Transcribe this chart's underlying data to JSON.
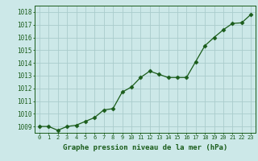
{
  "x": [
    0,
    1,
    2,
    3,
    4,
    5,
    6,
    7,
    8,
    9,
    10,
    11,
    12,
    13,
    14,
    15,
    16,
    17,
    18,
    19,
    20,
    21,
    22,
    23
  ],
  "y": [
    1009.0,
    1009.0,
    1008.7,
    1009.0,
    1009.1,
    1009.4,
    1009.7,
    1010.3,
    1010.4,
    1011.7,
    1012.1,
    1012.85,
    1013.35,
    1013.1,
    1012.85,
    1012.85,
    1012.85,
    1014.1,
    1015.35,
    1016.0,
    1016.6,
    1017.1,
    1017.15,
    1017.8
  ],
  "line_color": "#1a5c1a",
  "marker_color": "#1a5c1a",
  "bg_color": "#cce8e8",
  "grid_color": "#aacccc",
  "xlabel": "Graphe pression niveau de la mer (hPa)",
  "xlabel_color": "#1a5c1a",
  "tick_color": "#1a5c1a",
  "ylim_min": 1008.5,
  "ylim_max": 1018.5,
  "ytick_min": 1009,
  "ytick_max": 1018,
  "ytick_step": 1,
  "xtick_labels": [
    "0",
    "1",
    "2",
    "3",
    "4",
    "5",
    "6",
    "7",
    "8",
    "9",
    "10",
    "11",
    "12",
    "13",
    "14",
    "15",
    "16",
    "17",
    "18",
    "19",
    "20",
    "21",
    "22",
    "23"
  ]
}
